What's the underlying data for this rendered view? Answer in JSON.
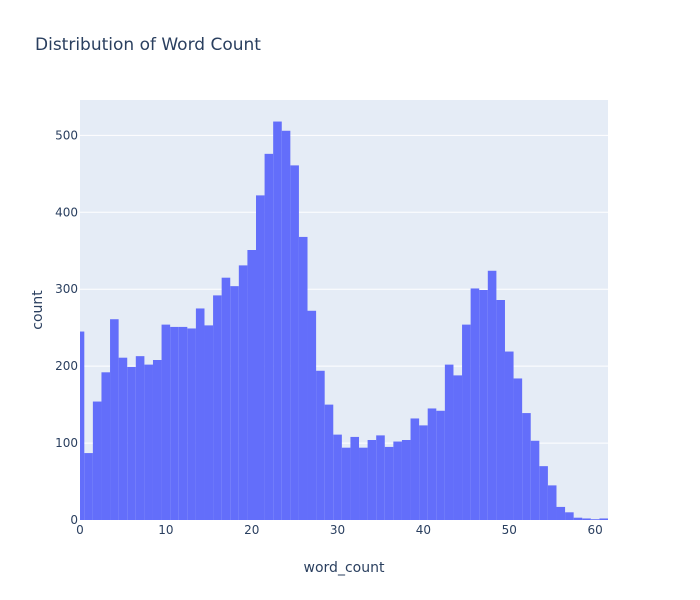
{
  "chart_data": {
    "type": "bar",
    "title": "Distribution of Word Count",
    "xlabel": "word_count",
    "ylabel": "count",
    "xlim": [
      0,
      61.5
    ],
    "ylim": [
      0,
      546
    ],
    "x_ticks": [
      0,
      10,
      20,
      30,
      40,
      50,
      60
    ],
    "y_ticks": [
      0,
      100,
      200,
      300,
      400,
      500
    ],
    "grid": true,
    "bar_color": "#636efa",
    "plot_bg": "#e5ecf6",
    "grid_color": "#ffffff",
    "text_color": "#2a3f5f",
    "series": [
      {
        "x": [
          0,
          1,
          2,
          3,
          4,
          5,
          6,
          7,
          8,
          9,
          10,
          11,
          12,
          13,
          14,
          15,
          16,
          17,
          18,
          19,
          20,
          21,
          22,
          23,
          24,
          25,
          26,
          27,
          28,
          29,
          30,
          31,
          32,
          33,
          34,
          35,
          36,
          37,
          38,
          39,
          40,
          41,
          42,
          43,
          44,
          45,
          46,
          47,
          48,
          49,
          50,
          51,
          52,
          53,
          54,
          55,
          56,
          57,
          58,
          59,
          60,
          61
        ],
        "values": [
          245,
          87,
          154,
          192,
          261,
          211,
          199,
          213,
          202,
          208,
          254,
          251,
          251,
          249,
          275,
          253,
          292,
          315,
          304,
          331,
          351,
          422,
          476,
          518,
          506,
          461,
          368,
          272,
          194,
          150,
          111,
          94,
          108,
          94,
          104,
          110,
          95,
          102,
          104,
          132,
          123,
          145,
          142,
          202,
          188,
          254,
          301,
          299,
          324,
          286,
          219,
          184,
          139,
          103,
          70,
          45,
          17,
          10,
          3,
          2,
          1,
          2
        ]
      }
    ]
  }
}
